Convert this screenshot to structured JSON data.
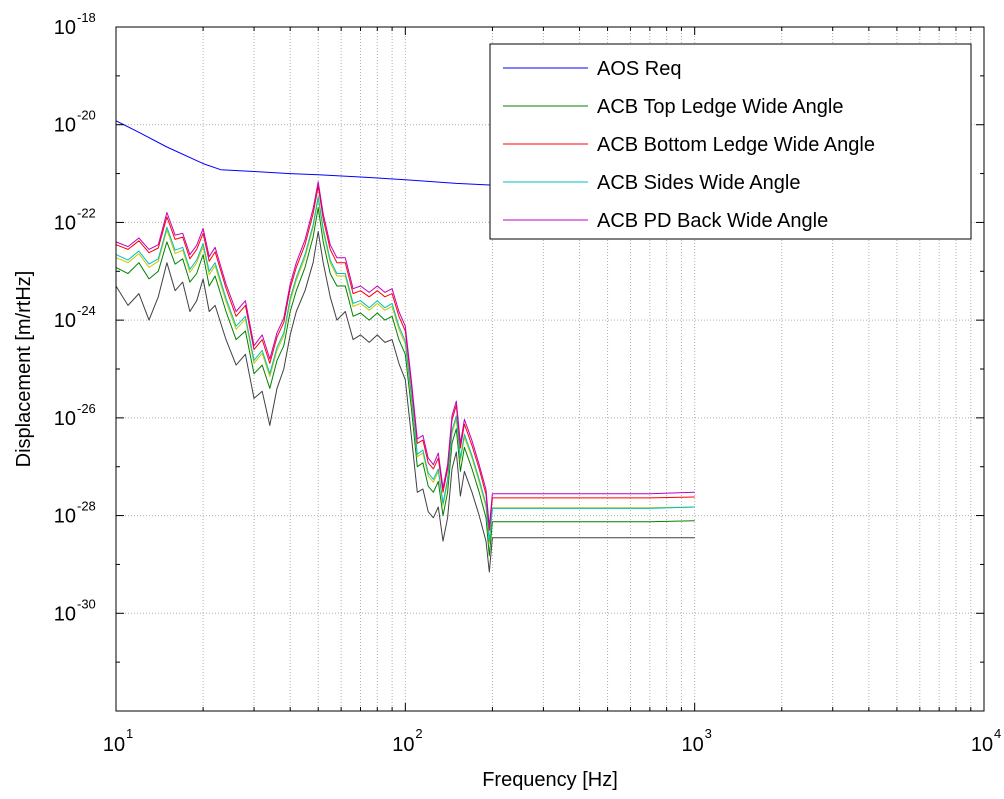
{
  "chart_data": {
    "type": "line",
    "title": "",
    "xlabel": "Frequency [Hz]",
    "ylabel": "Displacement [m/rtHz]",
    "xscale": "log",
    "yscale": "log",
    "xlim": [
      10,
      10000
    ],
    "ylim": [
      1e-32,
      1e-18
    ],
    "grid": true,
    "legend_position": "top-right",
    "xticks": [
      {
        "base": "10",
        "exp": "1",
        "value": 10
      },
      {
        "base": "10",
        "exp": "2",
        "value": 100
      },
      {
        "base": "10",
        "exp": "3",
        "value": 1000
      },
      {
        "base": "10",
        "exp": "4",
        "value": 10000
      }
    ],
    "yticks": [
      {
        "base": "10",
        "exp": "-18",
        "value": 1e-18
      },
      {
        "base": "10",
        "exp": "-20",
        "value": 1e-20
      },
      {
        "base": "10",
        "exp": "-22",
        "value": 1e-22
      },
      {
        "base": "10",
        "exp": "-24",
        "value": 1e-24
      },
      {
        "base": "10",
        "exp": "-26",
        "value": 1e-26
      },
      {
        "base": "10",
        "exp": "-28",
        "value": 1e-28
      },
      {
        "base": "10",
        "exp": "-30",
        "value": 1e-30
      }
    ],
    "series": [
      {
        "name": "AOS Req",
        "color": "#0000ff",
        "x": [
          10,
          12,
          15,
          20,
          23,
          30,
          40,
          50,
          70,
          100,
          150,
          200,
          300,
          500,
          700,
          1000
        ],
        "y": [
          1.2e-20,
          7e-21,
          3.5e-21,
          1.6e-21,
          1.2e-21,
          1.1e-21,
          1e-21,
          9.5e-22,
          8.5e-22,
          7.5e-22,
          6.3e-22,
          5.8e-22,
          5.3e-22,
          4.8e-22,
          4.5e-22,
          4.2e-22
        ]
      },
      {
        "name": "ACB Top Ledge Wide Angle",
        "color": "#008000",
        "x": [
          10,
          11,
          12,
          13,
          14,
          15,
          16,
          17,
          18,
          19,
          20,
          21,
          22,
          24,
          26,
          28,
          30,
          32,
          34,
          36,
          38,
          40,
          42,
          45,
          48,
          50,
          52,
          55,
          58,
          62,
          66,
          70,
          75,
          80,
          85,
          90,
          95,
          100,
          105,
          110,
          115,
          120,
          125,
          130,
          135,
          140,
          145,
          150,
          155,
          160,
          170,
          180,
          190,
          195,
          200,
          300,
          500,
          700,
          1000
        ],
        "y": [
          1.2e-23,
          9e-24,
          1.5e-23,
          7e-24,
          1e-23,
          4e-23,
          1.4e-23,
          1.8e-23,
          6e-24,
          9e-24,
          2.2e-23,
          5e-24,
          8e-24,
          1.5e-24,
          4e-25,
          6e-25,
          8e-26,
          1.2e-25,
          4e-26,
          1.5e-25,
          3e-25,
          1.5e-24,
          4e-24,
          1.2e-23,
          5e-23,
          2e-22,
          4e-23,
          9e-24,
          5e-24,
          5e-24,
          1.2e-24,
          1.4e-24,
          1e-24,
          1.4e-24,
          1e-24,
          1.2e-24,
          4e-25,
          2e-25,
          1.5e-26,
          1e-27,
          1.2e-27,
          4e-28,
          3e-28,
          5e-28,
          1e-28,
          3e-28,
          3e-27,
          6e-27,
          8e-28,
          2.5e-27,
          9e-28,
          3e-28,
          9e-29,
          1.5e-29,
          7.5e-29,
          7.5e-29,
          7.5e-29,
          7.5e-29,
          7.8e-29
        ]
      },
      {
        "name": "ACB Bottom Ledge Wide Angle",
        "color": "#ff0000",
        "x": [
          10,
          11,
          12,
          13,
          14,
          15,
          16,
          17,
          18,
          19,
          20,
          21,
          22,
          24,
          26,
          28,
          30,
          32,
          34,
          36,
          38,
          40,
          42,
          45,
          48,
          50,
          52,
          55,
          58,
          62,
          66,
          70,
          75,
          80,
          85,
          90,
          95,
          100,
          105,
          110,
          115,
          120,
          125,
          130,
          135,
          140,
          145,
          150,
          155,
          160,
          170,
          180,
          190,
          195,
          200,
          300,
          500,
          700,
          1000
        ],
        "y": [
          3.5e-23,
          2.8e-23,
          4.2e-23,
          2.4e-23,
          3e-23,
          1.3e-22,
          4.5e-23,
          5e-23,
          1.8e-23,
          2.8e-23,
          6e-23,
          1.6e-23,
          2.5e-23,
          4.5e-24,
          1.2e-24,
          2e-24,
          2.5e-25,
          4e-25,
          1.3e-25,
          4.5e-25,
          9e-25,
          4.5e-24,
          1.2e-23,
          3.5e-23,
          1.5e-22,
          5.5e-22,
          1.2e-22,
          2.8e-23,
          1.5e-23,
          1.5e-23,
          3.5e-24,
          4e-24,
          3e-24,
          4e-24,
          3e-24,
          3.5e-24,
          1.2e-24,
          6e-25,
          4.5e-26,
          3e-27,
          3.5e-27,
          1.2e-27,
          9e-28,
          1.5e-27,
          3e-28,
          9e-28,
          9e-27,
          1.8e-26,
          2.4e-27,
          7.5e-27,
          2.7e-27,
          9e-28,
          2.7e-28,
          5e-29,
          2.3e-28,
          2.3e-28,
          2.3e-28,
          2.3e-28,
          2.4e-28
        ]
      },
      {
        "name": "ACB Sides Wide Angle",
        "color": "#00bfbf",
        "x": [
          10,
          11,
          12,
          13,
          14,
          15,
          16,
          17,
          18,
          19,
          20,
          21,
          22,
          24,
          26,
          28,
          30,
          32,
          34,
          36,
          38,
          40,
          42,
          45,
          48,
          50,
          52,
          55,
          58,
          62,
          66,
          70,
          75,
          80,
          85,
          90,
          95,
          100,
          105,
          110,
          115,
          120,
          125,
          130,
          135,
          140,
          145,
          150,
          155,
          160,
          170,
          180,
          190,
          195,
          200,
          300,
          500,
          700,
          1000
        ],
        "y": [
          2.2e-23,
          1.7e-23,
          2.6e-23,
          1.4e-23,
          1.8e-23,
          8e-23,
          2.7e-23,
          3.1e-23,
          1.1e-23,
          1.7e-23,
          3.7e-23,
          1e-23,
          1.5e-23,
          2.8e-24,
          7.5e-25,
          1.2e-24,
          1.5e-25,
          2.4e-25,
          8e-26,
          2.8e-25,
          5.5e-25,
          2.8e-24,
          7.5e-24,
          2.2e-23,
          9e-23,
          3.4e-22,
          7.5e-23,
          1.7e-23,
          9e-24,
          9e-24,
          2.2e-24,
          2.5e-24,
          1.8e-24,
          2.5e-24,
          1.8e-24,
          2.2e-24,
          7.5e-25,
          3.7e-25,
          2.8e-26,
          1.8e-27,
          2.2e-27,
          7.5e-28,
          5.5e-28,
          9e-28,
          1.8e-28,
          5.5e-28,
          5.5e-27,
          1.1e-26,
          1.5e-27,
          4.6e-27,
          1.7e-27,
          5.5e-28,
          1.7e-28,
          3e-29,
          1.4e-28,
          1.4e-28,
          1.4e-28,
          1.4e-28,
          1.5e-28
        ]
      },
      {
        "name": "ACB PD Back Wide Angle",
        "color": "#bf00bf",
        "x": [
          10,
          11,
          12,
          13,
          14,
          15,
          16,
          17,
          18,
          19,
          20,
          21,
          22,
          24,
          26,
          28,
          30,
          32,
          34,
          36,
          38,
          40,
          42,
          45,
          48,
          50,
          52,
          55,
          58,
          62,
          66,
          70,
          75,
          80,
          85,
          90,
          95,
          100,
          105,
          110,
          115,
          120,
          125,
          130,
          135,
          140,
          145,
          150,
          155,
          160,
          170,
          180,
          190,
          195,
          200,
          300,
          500,
          700,
          1000
        ],
        "y": [
          4e-23,
          3.2e-23,
          4.8e-23,
          2.8e-23,
          3.5e-23,
          1.6e-22,
          5.5e-23,
          6e-23,
          2.2e-23,
          3.4e-23,
          7.5e-23,
          2e-23,
          3.1e-23,
          5.5e-24,
          1.5e-24,
          2.5e-24,
          3e-25,
          5e-25,
          1.6e-25,
          5.5e-25,
          1.1e-24,
          5.5e-24,
          1.5e-23,
          4.4e-23,
          1.9e-22,
          6.8e-22,
          1.5e-22,
          3.5e-23,
          1.9e-23,
          1.9e-23,
          4.4e-24,
          5e-24,
          3.7e-24,
          5e-24,
          3.7e-24,
          4.4e-24,
          1.5e-24,
          7.5e-25,
          5.5e-26,
          3.7e-27,
          4.4e-27,
          1.5e-27,
          1.1e-27,
          1.9e-27,
          3.7e-28,
          1.1e-27,
          1.1e-26,
          2.2e-26,
          3e-27,
          9.3e-27,
          3.4e-27,
          1.1e-27,
          3.4e-28,
          6e-29,
          2.8e-28,
          2.8e-28,
          2.8e-28,
          2.8e-28,
          3e-28
        ]
      },
      {
        "name": "",
        "color": "#c8c800",
        "x": [
          10,
          11,
          12,
          13,
          14,
          15,
          16,
          17,
          18,
          19,
          20,
          21,
          22,
          24,
          26,
          28,
          30,
          32,
          34,
          36,
          38,
          40,
          42,
          45,
          48,
          50,
          52,
          55,
          58,
          62,
          66,
          70,
          75,
          80,
          85,
          90,
          95,
          100,
          105,
          110,
          115,
          120,
          125,
          130,
          135,
          140,
          145,
          150,
          155,
          160,
          170,
          180,
          190,
          195,
          200,
          300,
          500,
          700,
          1000
        ],
        "y": [
          1.9e-23,
          1.5e-23,
          2.3e-23,
          1.2e-23,
          1.6e-23,
          7e-23,
          2.3e-23,
          2.7e-23,
          9.5e-24,
          1.5e-23,
          3.2e-23,
          8.5e-24,
          1.3e-23,
          2.4e-24,
          6.5e-25,
          1.05e-24,
          1.3e-25,
          2.1e-25,
          7e-26,
          2.4e-25,
          4.8e-25,
          2.4e-24,
          6.5e-24,
          1.9e-23,
          8e-23,
          3e-22,
          6.5e-23,
          1.5e-23,
          8e-24,
          8e-24,
          1.9e-24,
          2.2e-24,
          1.6e-24,
          2.2e-24,
          1.6e-24,
          1.9e-24,
          6.5e-25,
          3.2e-25,
          2.4e-26,
          1.6e-27,
          1.9e-27,
          6.5e-28,
          4.8e-28,
          8e-28,
          1.6e-28,
          4.8e-28,
          4.8e-27,
          9.5e-27,
          1.3e-27,
          4e-27,
          1.5e-27,
          4.8e-28,
          1.5e-28,
          2.7e-29,
          1.45e-28,
          1.45e-28,
          1.45e-28,
          1.45e-28,
          1.5e-28
        ]
      },
      {
        "name": "",
        "color": "#404040",
        "x": [
          10,
          11,
          12,
          13,
          14,
          15,
          16,
          17,
          18,
          19,
          20,
          21,
          22,
          24,
          26,
          28,
          30,
          32,
          34,
          36,
          38,
          40,
          42,
          45,
          48,
          50,
          52,
          55,
          58,
          62,
          66,
          70,
          75,
          80,
          85,
          90,
          95,
          100,
          105,
          110,
          115,
          120,
          125,
          130,
          135,
          140,
          145,
          150,
          155,
          160,
          170,
          180,
          190,
          195,
          200,
          300,
          500,
          700,
          1000
        ],
        "y": [
          5e-24,
          2e-24,
          3.5e-24,
          1e-24,
          3e-24,
          1.5e-23,
          4e-24,
          6e-24,
          1.5e-24,
          2.5e-24,
          7e-24,
          1.5e-24,
          2e-24,
          4e-25,
          1.2e-25,
          2e-25,
          2.5e-26,
          3.5e-26,
          7e-27,
          4e-26,
          1e-25,
          5e-25,
          1.5e-24,
          4e-24,
          1.5e-23,
          6.5e-23,
          1.5e-23,
          3e-24,
          1e-24,
          1.5e-24,
          4e-25,
          5e-25,
          3.5e-25,
          5e-25,
          3.5e-25,
          4e-25,
          1.3e-25,
          6e-26,
          4e-27,
          3e-28,
          3.5e-28,
          1.2e-28,
          9e-29,
          1.5e-28,
          3e-29,
          9e-29,
          9e-28,
          2e-27,
          2.5e-28,
          8e-28,
          3e-28,
          1e-28,
          3e-29,
          7e-30,
          3.5e-29,
          3.5e-29,
          3.5e-29,
          3.5e-29,
          3.5e-29
        ]
      }
    ]
  }
}
